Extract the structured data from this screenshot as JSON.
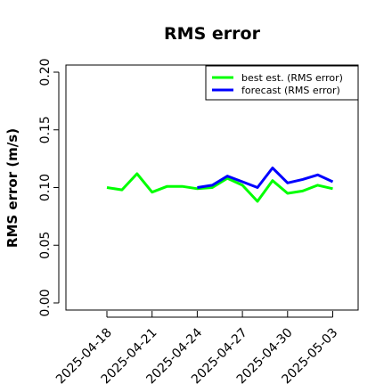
{
  "chart_data": {
    "type": "line",
    "title": "RMS error",
    "xlabel": "",
    "ylabel": "RMS error (m/s)",
    "ylim": [
      0,
      0.21
    ],
    "yticks": [
      0.0,
      0.05,
      0.1,
      0.15,
      0.2
    ],
    "ytick_labels": [
      "0.00",
      "0.05",
      "0.10",
      "0.15",
      "0.20"
    ],
    "xticks": [
      "2025-04-18",
      "2025-04-21",
      "2025-04-24",
      "2025-04-27",
      "2025-04-30",
      "2025-05-03"
    ],
    "highlight_tick": "2025-04-24",
    "highlight_color": "#228B22",
    "grid": false,
    "legend_position": "top-right",
    "series": [
      {
        "name": "best est. (RMS error)",
        "color": "#00FF00",
        "x": [
          "2025-04-18",
          "2025-04-19",
          "2025-04-20",
          "2025-04-21",
          "2025-04-22",
          "2025-04-23",
          "2025-04-24",
          "2025-04-25",
          "2025-04-26",
          "2025-04-27",
          "2025-04-28",
          "2025-04-29",
          "2025-04-30",
          "2025-05-01",
          "2025-05-02",
          "2025-05-03"
        ],
        "values": [
          0.1,
          0.098,
          0.112,
          0.096,
          0.101,
          0.101,
          0.099,
          0.1,
          0.108,
          0.102,
          0.088,
          0.106,
          0.095,
          0.097,
          0.102,
          0.099
        ]
      },
      {
        "name": "forecast (RMS error)",
        "color": "#0000FF",
        "x": [
          "2025-04-24",
          "2025-04-25",
          "2025-04-26",
          "2025-04-27",
          "2025-04-28",
          "2025-04-29",
          "2025-04-30",
          "2025-05-01",
          "2025-05-02",
          "2025-05-03"
        ],
        "values": [
          0.1,
          0.102,
          0.11,
          0.105,
          0.1,
          0.117,
          0.104,
          0.107,
          0.111,
          0.105
        ]
      }
    ]
  }
}
